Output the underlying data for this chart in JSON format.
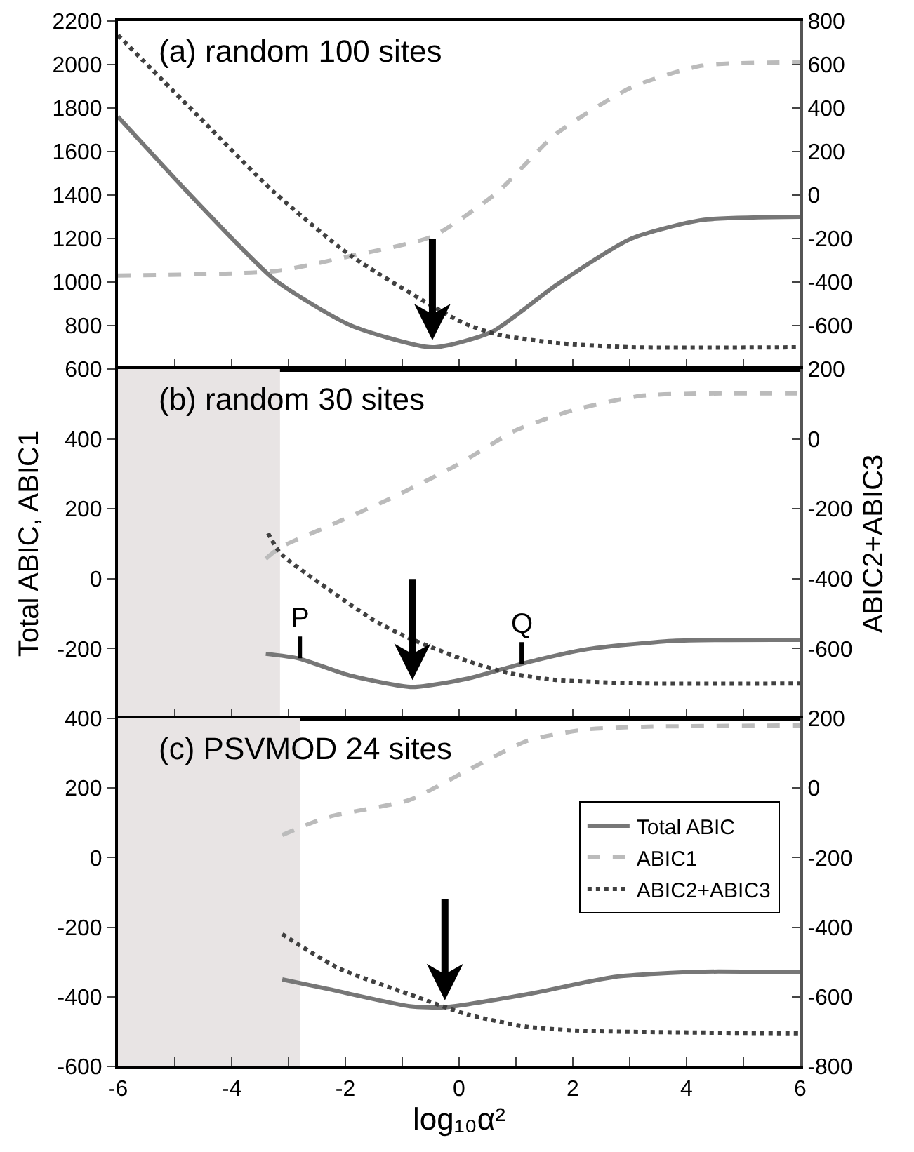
{
  "chart_data": [
    {
      "type": "line",
      "title": "(a) random 100 sites",
      "xlim": [
        -6,
        6
      ],
      "xticks": [
        -6,
        {
          "value": -5,
          "label": null
        },
        -4,
        {
          "value": -3,
          "label": null
        },
        -2,
        {
          "value": -1,
          "label": null
        },
        0,
        {
          "value": 1,
          "label": null
        },
        2,
        {
          "value": 3,
          "label": null
        },
        4,
        {
          "value": 5,
          "label": null
        },
        6
      ],
      "ylim": [
        600,
        2200
      ],
      "yticks": [
        800,
        1000,
        1200,
        1400,
        1600,
        1800,
        2000,
        2200
      ],
      "y2lim": [
        -800,
        800
      ],
      "y2ticks": [
        -600,
        -400,
        -200,
        0,
        200,
        400,
        600,
        800
      ],
      "tick_labels": "y",
      "grid": false,
      "legend": false,
      "series": [
        {
          "color": "#777777",
          "line_style": "solid",
          "x": [
            -6,
            -4.69,
            -3.24,
            -1.9,
            -0.47,
            0.57,
            1.7,
            3.03,
            4.27,
            6
          ],
          "values": [
            1760,
            1390,
            1010,
            800,
            700,
            770,
            985,
            1200,
            1285,
            1300
          ]
        },
        {
          "color": "#bbbbbb",
          "line_style": "dashed",
          "axis": "y2",
          "x": [
            -6,
            -3.24,
            -1.9,
            -0.47,
            0.66,
            1.7,
            3.03,
            4.27,
            6
          ],
          "values": [
            -370,
            -350,
            -280,
            -190,
            10,
            280,
            495,
            595,
            610
          ]
        },
        {
          "color": "#404040",
          "line_style": "dotted",
          "axis": "y2",
          "x": [
            -6,
            -4.69,
            -3.24,
            -1.9,
            0.05,
            0.66,
            1.7,
            3.03,
            6
          ],
          "values": [
            735,
            390,
            10,
            -280,
            -585,
            -640,
            -680,
            -700,
            -700
          ]
        }
      ]
    },
    {
      "type": "line",
      "title": "(b) random 30 sites",
      "ylabel": "Total ABIC, ABIC1",
      "y2label": "ABIC2+ABIC3",
      "xlim": [
        -6,
        6
      ],
      "xticks": [
        -6,
        {
          "value": -5,
          "label": null
        },
        -4,
        {
          "value": -3,
          "label": null
        },
        -2,
        {
          "value": -1,
          "label": null
        },
        0,
        {
          "value": 1,
          "label": null
        },
        2,
        {
          "value": 3,
          "label": null
        },
        4,
        {
          "value": 5,
          "label": null
        },
        6
      ],
      "ylim": [
        -400,
        600
      ],
      "yticks": [
        -200,
        0,
        200,
        400,
        600
      ],
      "y2lim": [
        -800,
        200
      ],
      "y2ticks": [
        -600,
        -400,
        -200,
        0,
        200
      ],
      "tick_labels": "y",
      "grid": false,
      "legend": false,
      "bands": [
        {
          "axis": "x",
          "from": -6,
          "to": -3.15,
          "color": "#e8e4e4"
        }
      ],
      "annotations": [
        {
          "text": "P",
          "x": -2.8,
          "y": -228
        },
        {
          "text": "Q",
          "x": 1.1,
          "y": -244
        }
      ],
      "series": [
        {
          "color": "#777777",
          "line_style": "solid",
          "x": [
            -3.4,
            -2.83,
            -1.9,
            -0.82,
            0.15,
            1.09,
            2.21,
            3.76,
            6
          ],
          "values": [
            -215,
            -228,
            -278,
            -310,
            -286,
            -244,
            -203,
            -178,
            -175
          ]
        },
        {
          "color": "#bbbbbb",
          "line_style": "dashed",
          "x": [
            -3.4,
            -3.14,
            -2.32,
            -1.28,
            -0.05,
            0.99,
            2.0,
            3.24,
            6
          ],
          "values": [
            57,
            90,
            149,
            224,
            324,
            424,
            482,
            524,
            530
          ]
        },
        {
          "color": "#404040",
          "line_style": "dotted",
          "axis": "y2",
          "x": [
            -3.36,
            -3.14,
            -2.32,
            -1.49,
            -0.88,
            0.15,
            0.87,
            1.7,
            3.24,
            6
          ],
          "values": [
            -270,
            -328,
            -428,
            -520,
            -570,
            -636,
            -670,
            -690,
            -700,
            -700
          ]
        }
      ]
    },
    {
      "type": "line",
      "title": "(c) PSVMOD 24 sites",
      "xlabel": "log₁₀α²",
      "xlim": [
        -6,
        6
      ],
      "xticks": [
        -6,
        {
          "value": -5,
          "label": null
        },
        -4,
        {
          "value": -3,
          "label": null
        },
        -2,
        {
          "value": -1,
          "label": null
        },
        0,
        {
          "value": 1,
          "label": null
        },
        2,
        {
          "value": 3,
          "label": null
        },
        4,
        {
          "value": 5,
          "label": null
        },
        6
      ],
      "ylim": [
        -600,
        400
      ],
      "yticks": [
        -600,
        -400,
        -200,
        0,
        200,
        400
      ],
      "y2lim": [
        -800,
        200
      ],
      "y2ticks": [
        -800,
        -600,
        -400,
        -200,
        0,
        200
      ],
      "grid": false,
      "legend": "right",
      "bands": [
        {
          "axis": "x",
          "from": -6,
          "to": -2.8,
          "color": "#e8e4e4"
        }
      ],
      "series": [
        {
          "name": "Total ABIC",
          "color": "#777777",
          "line_style": "solid",
          "x": [
            -3.11,
            -2.32,
            -0.87,
            -0.25,
            1.19,
            2.73,
            4.27,
            6
          ],
          "values": [
            -350,
            -377,
            -427,
            -430,
            -393,
            -343,
            -328,
            -330
          ]
        },
        {
          "name": "ABIC1",
          "color": "#bbbbbb",
          "line_style": "dashed",
          "x": [
            -3.11,
            -2.32,
            -0.87,
            0.15,
            1.19,
            2.21,
            3.24,
            6
          ],
          "values": [
            65,
            116,
            166,
            251,
            335,
            368,
            376,
            380
          ]
        },
        {
          "name": "ABIC2+ABIC3",
          "color": "#404040",
          "line_style": "dotted",
          "axis": "y2",
          "x": [
            -3.11,
            -2.12,
            -0.87,
            0.15,
            1.19,
            2.21,
            6
          ],
          "values": [
            -420,
            -518,
            -593,
            -651,
            -686,
            -698,
            -705
          ]
        }
      ]
    }
  ]
}
